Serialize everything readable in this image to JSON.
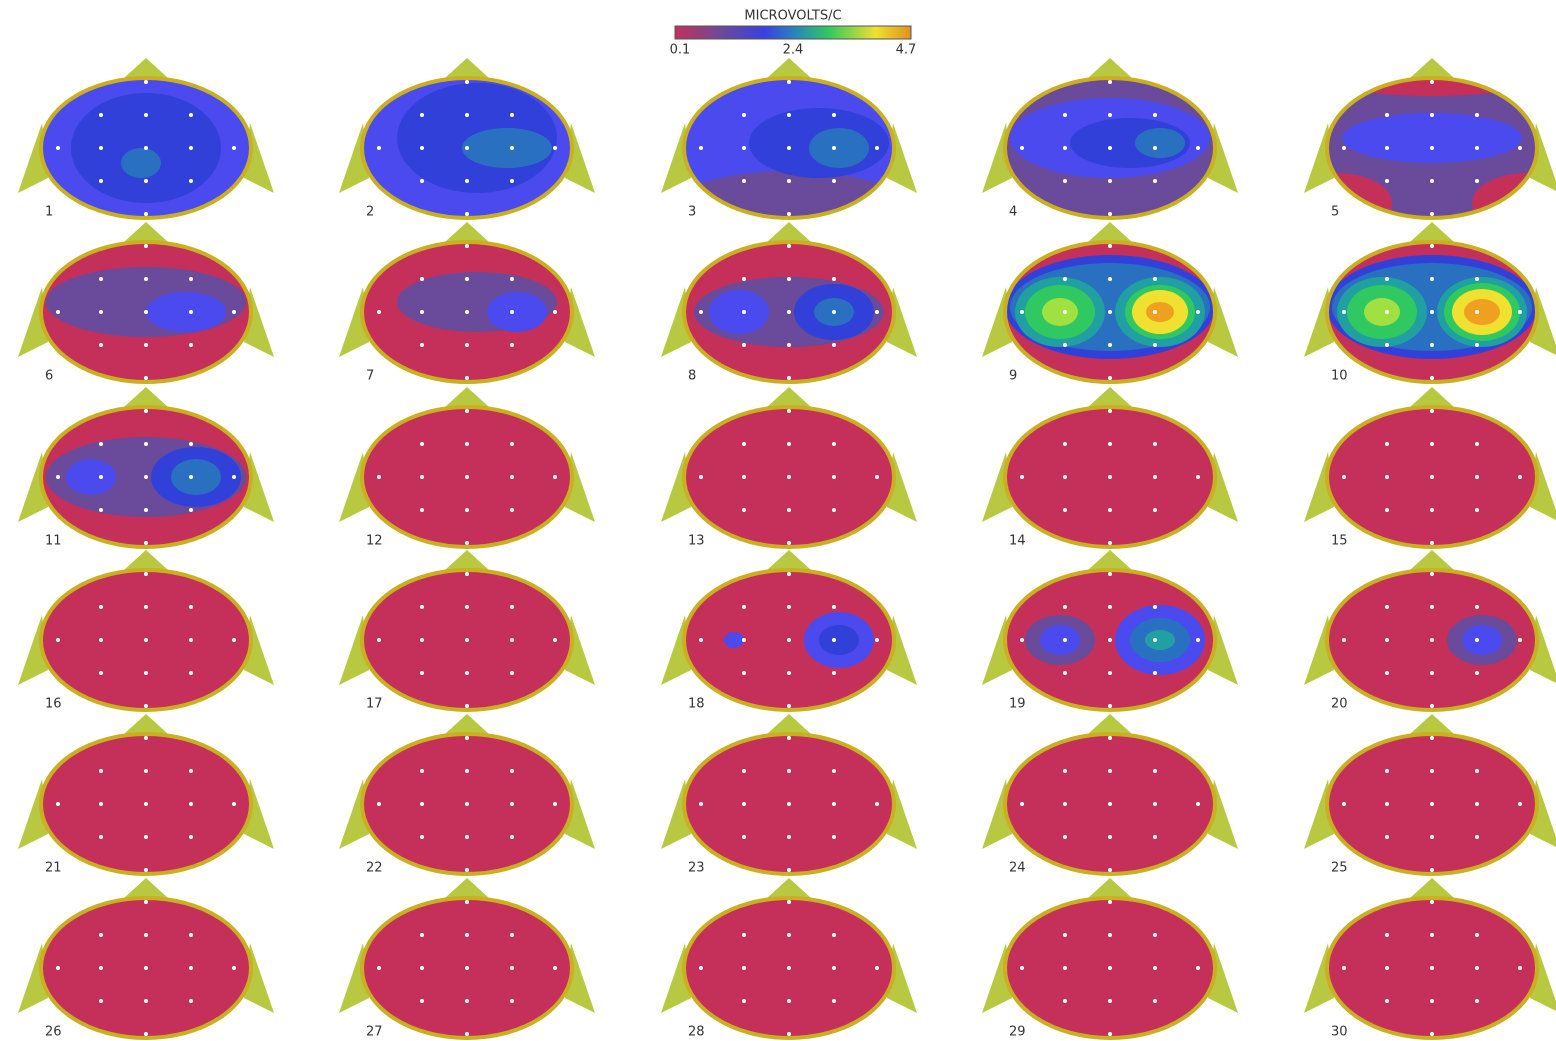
{
  "colorbar": {
    "title": "MICROVOLTS/C",
    "ticks": [
      0.1,
      2.4,
      4.7
    ]
  },
  "map_labels": [
    1,
    2,
    3,
    4,
    5,
    6,
    7,
    8,
    9,
    10,
    11,
    12,
    13,
    14,
    15,
    16,
    17,
    18,
    19,
    20,
    21,
    22,
    23,
    24,
    25,
    26,
    27,
    28,
    29,
    30
  ]
}
